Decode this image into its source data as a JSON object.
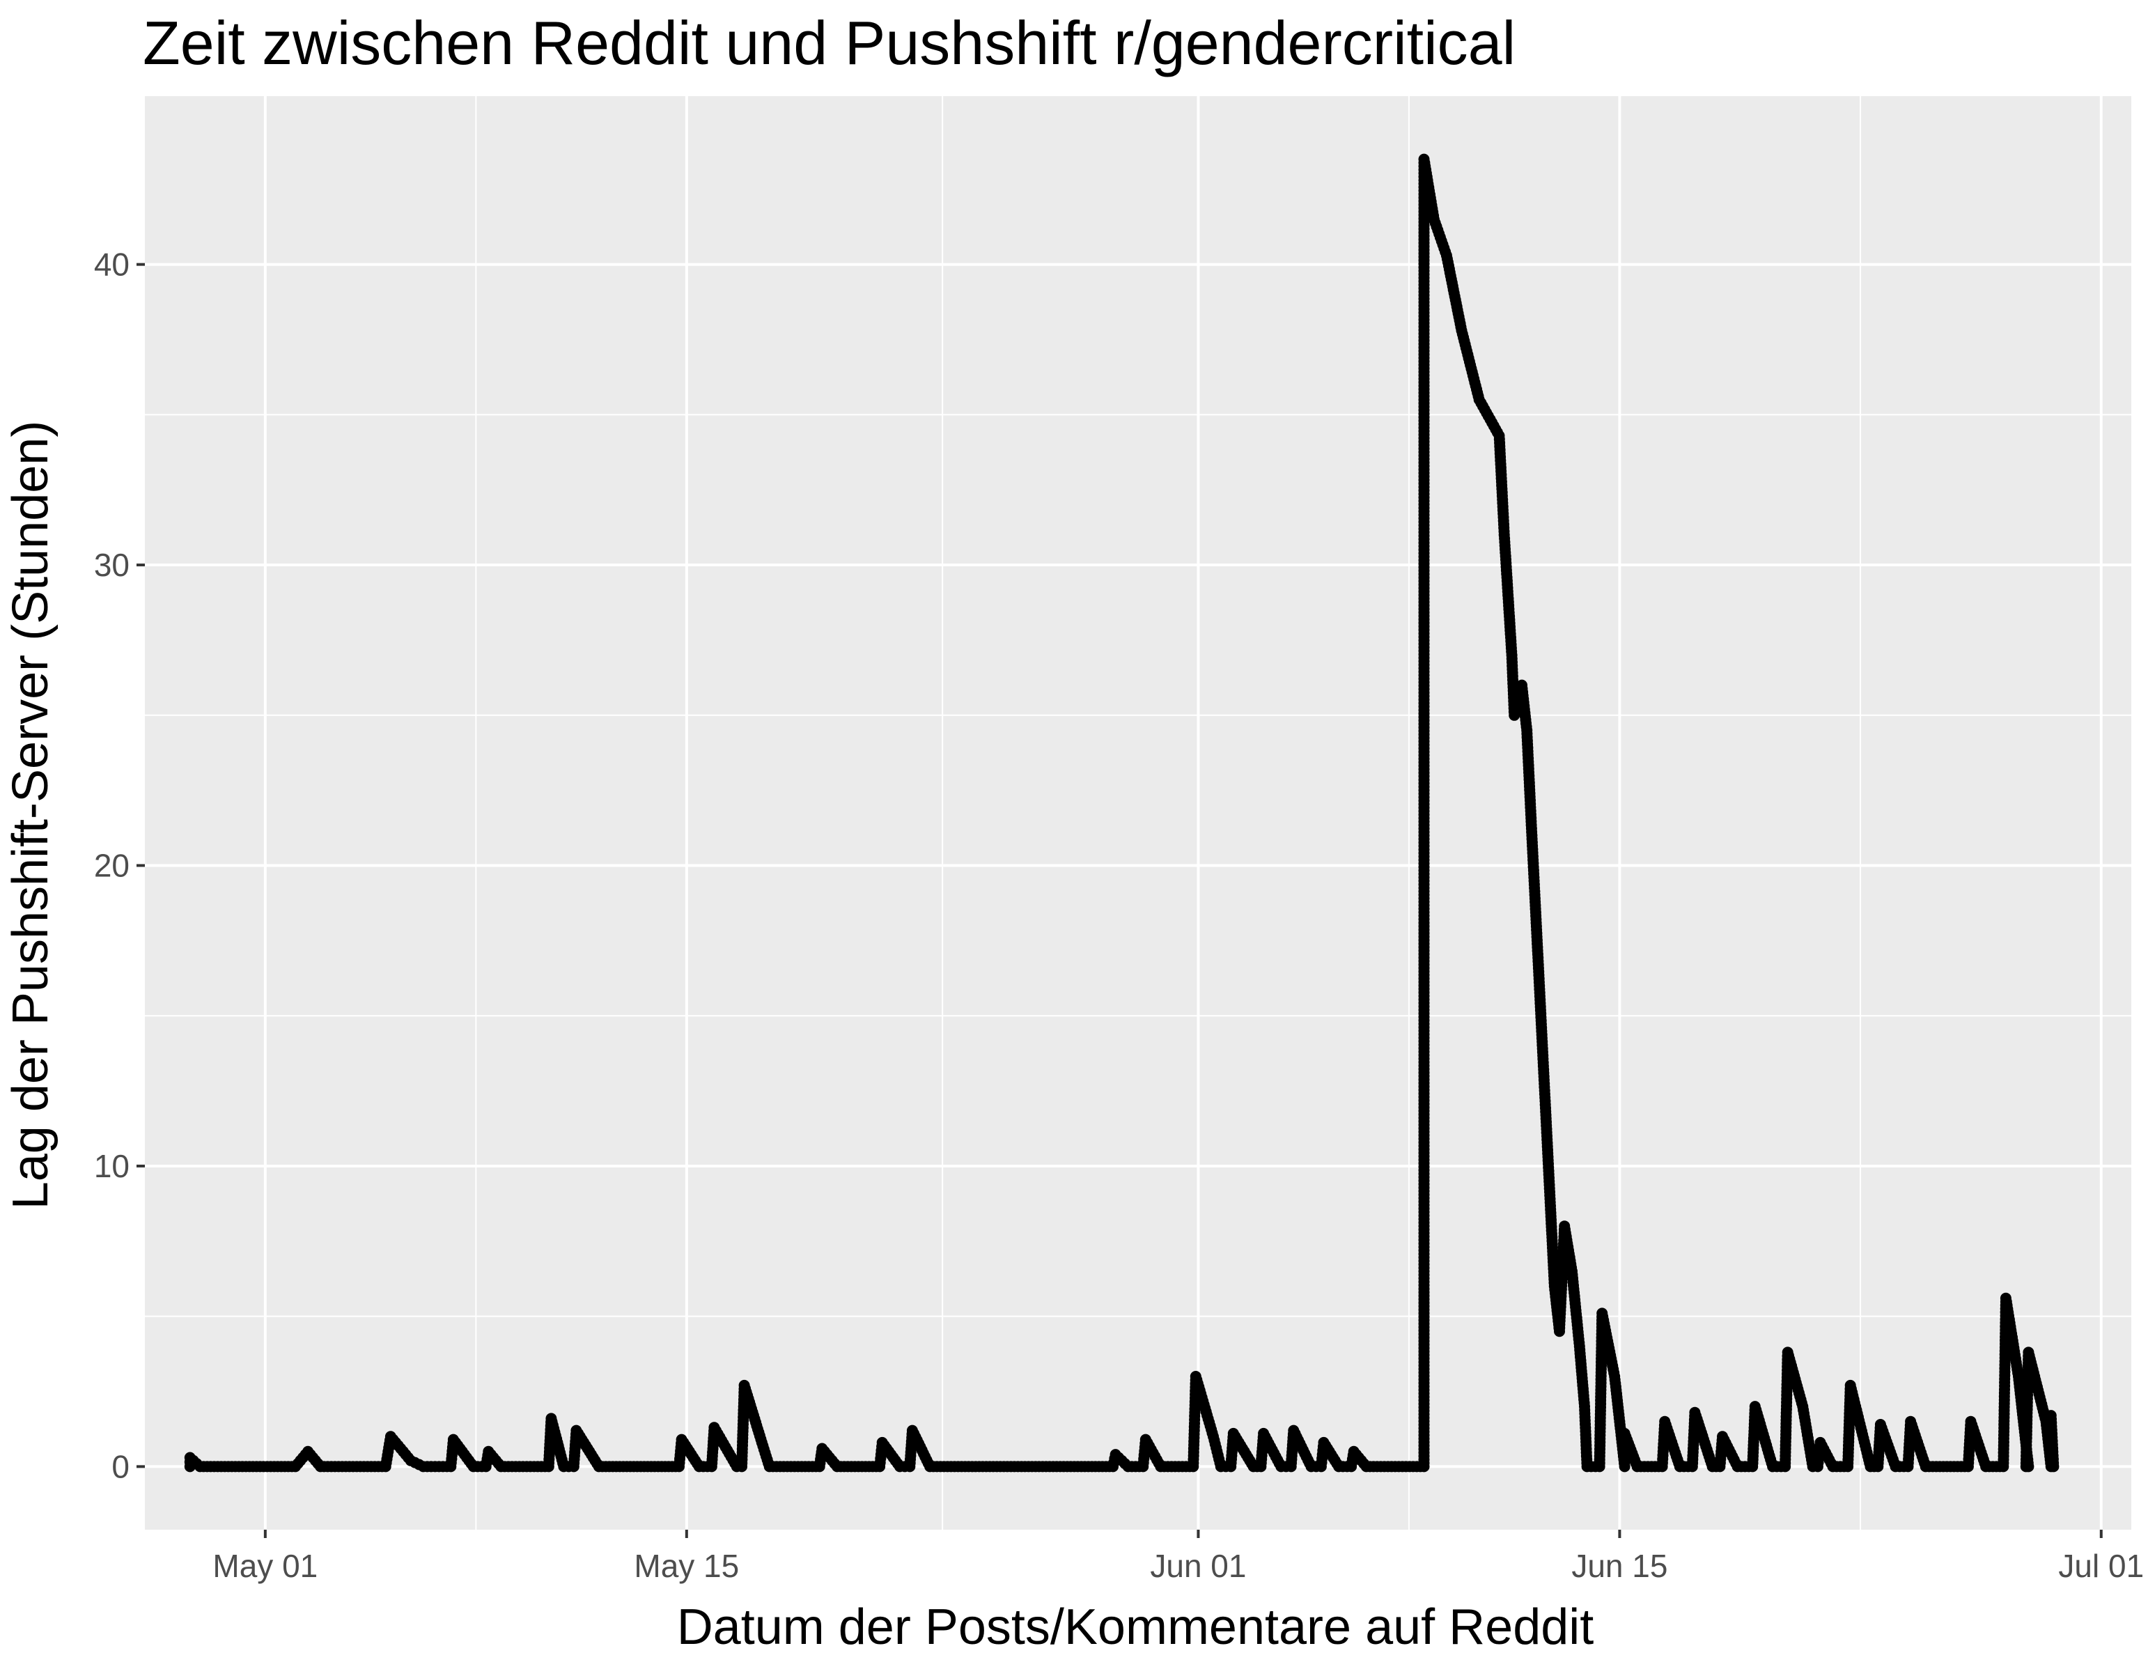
{
  "chart_data": {
    "type": "scatter",
    "title": "Zeit zwischen Reddit und Pushshift r/gendercritical",
    "xlabel": "Datum der Posts/Kommentare auf Reddit",
    "ylabel": "Lag der Pushshift-Server (Stunden)",
    "x_type": "date",
    "xlim": [
      "2020-04-27",
      "2020-07-02"
    ],
    "ylim": [
      -2.1,
      45.6
    ],
    "x_ticks": [
      {
        "value": "2020-05-01",
        "label": "May 01"
      },
      {
        "value": "2020-05-15",
        "label": "May 15"
      },
      {
        "value": "2020-06-01",
        "label": "Jun 01"
      },
      {
        "value": "2020-06-15",
        "label": "Jun 15"
      },
      {
        "value": "2020-07-01",
        "label": "Jul 01"
      }
    ],
    "y_ticks": [
      {
        "value": 0,
        "label": "0"
      },
      {
        "value": 10,
        "label": "10"
      },
      {
        "value": 20,
        "label": "20"
      },
      {
        "value": 30,
        "label": "30"
      },
      {
        "value": 40,
        "label": "40"
      }
    ],
    "grid": true,
    "point_color": "#000000",
    "panel_color": "#ebebeb",
    "grid_color": "#ffffff",
    "series": [
      {
        "points": [
          [
            "2020-04-28T12:00",
            0.0
          ],
          [
            "2020-04-28T12:00",
            0.3
          ],
          [
            "2020-04-28T20:00",
            0.0
          ],
          [
            "2020-05-02T00:00",
            0.0
          ],
          [
            "2020-05-02T10:00",
            0.5
          ],
          [
            "2020-05-02T20:00",
            0.0
          ],
          [
            "2020-05-05T00:00",
            0.0
          ],
          [
            "2020-05-05T04:00",
            1.0
          ],
          [
            "2020-05-05T20:00",
            0.2
          ],
          [
            "2020-05-06T06:00",
            0.0
          ],
          [
            "2020-05-07T04:00",
            0.0
          ],
          [
            "2020-05-07T06:00",
            0.9
          ],
          [
            "2020-05-07T22:00",
            0.0
          ],
          [
            "2020-05-08T08:00",
            0.0
          ],
          [
            "2020-05-08T10:00",
            0.5
          ],
          [
            "2020-05-08T20:00",
            0.0
          ],
          [
            "2020-05-10T10:00",
            0.0
          ],
          [
            "2020-05-10T12:00",
            1.6
          ],
          [
            "2020-05-10T22:00",
            0.0
          ],
          [
            "2020-05-11T06:00",
            0.0
          ],
          [
            "2020-05-11T08:00",
            1.2
          ],
          [
            "2020-05-12T02:00",
            0.0
          ],
          [
            "2020-05-14T18:00",
            0.0
          ],
          [
            "2020-05-14T20:00",
            0.9
          ],
          [
            "2020-05-15T10:00",
            0.0
          ],
          [
            "2020-05-15T20:00",
            0.0
          ],
          [
            "2020-05-15T22:00",
            1.3
          ],
          [
            "2020-05-16T16:00",
            0.0
          ],
          [
            "2020-05-16T20:00",
            0.0
          ],
          [
            "2020-05-16T22:00",
            2.7
          ],
          [
            "2020-05-17T12:00",
            0.8
          ],
          [
            "2020-05-17T18:00",
            0.0
          ],
          [
            "2020-05-19T10:00",
            0.0
          ],
          [
            "2020-05-19T12:00",
            0.6
          ],
          [
            "2020-05-20T00:00",
            0.0
          ],
          [
            "2020-05-21T10:00",
            0.0
          ],
          [
            "2020-05-21T12:00",
            0.8
          ],
          [
            "2020-05-22T02:00",
            0.0
          ],
          [
            "2020-05-22T10:00",
            0.0
          ],
          [
            "2020-05-22T12:00",
            1.2
          ],
          [
            "2020-05-23T02:00",
            0.0
          ],
          [
            "2020-05-29T04:00",
            0.0
          ],
          [
            "2020-05-29T06:00",
            0.4
          ],
          [
            "2020-05-29T16:00",
            0.0
          ],
          [
            "2020-05-30T04:00",
            0.0
          ],
          [
            "2020-05-30T06:00",
            0.9
          ],
          [
            "2020-05-30T18:00",
            0.0
          ],
          [
            "2020-05-31T20:00",
            0.0
          ],
          [
            "2020-05-31T22:00",
            3.0
          ],
          [
            "2020-06-01T12:00",
            1.0
          ],
          [
            "2020-06-01T18:00",
            0.0
          ],
          [
            "2020-06-02T02:00",
            0.0
          ],
          [
            "2020-06-02T04:00",
            1.1
          ],
          [
            "2020-06-02T20:00",
            0.0
          ],
          [
            "2020-06-03T02:00",
            0.0
          ],
          [
            "2020-06-03T04:00",
            1.1
          ],
          [
            "2020-06-03T18:00",
            0.0
          ],
          [
            "2020-06-04T02:00",
            0.0
          ],
          [
            "2020-06-04T04:00",
            1.2
          ],
          [
            "2020-06-04T18:00",
            0.0
          ],
          [
            "2020-06-05T02:00",
            0.0
          ],
          [
            "2020-06-05T04:00",
            0.8
          ],
          [
            "2020-06-05T16:00",
            0.0
          ],
          [
            "2020-06-06T02:00",
            0.0
          ],
          [
            "2020-06-06T04:00",
            0.5
          ],
          [
            "2020-06-06T14:00",
            0.0
          ],
          [
            "2020-06-08T12:00",
            0.0
          ],
          [
            "2020-06-08T12:00",
            43.5
          ],
          [
            "2020-06-08T20:00",
            41.5
          ],
          [
            "2020-06-09T06:00",
            40.3
          ],
          [
            "2020-06-09T18:00",
            37.8
          ],
          [
            "2020-06-10T08:00",
            35.5
          ],
          [
            "2020-06-11T00:00",
            34.3
          ],
          [
            "2020-06-11T04:00",
            31.0
          ],
          [
            "2020-06-11T10:00",
            27.0
          ],
          [
            "2020-06-11T12:00",
            25.0
          ],
          [
            "2020-06-11T18:00",
            26.0
          ],
          [
            "2020-06-11T22:00",
            24.5
          ],
          [
            "2020-06-12T02:00",
            21.0
          ],
          [
            "2020-06-12T08:00",
            16.0
          ],
          [
            "2020-06-12T14:00",
            11.0
          ],
          [
            "2020-06-12T20:00",
            6.0
          ],
          [
            "2020-06-13T00:00",
            4.5
          ],
          [
            "2020-06-13T04:00",
            8.0
          ],
          [
            "2020-06-13T10:00",
            6.5
          ],
          [
            "2020-06-13T16:00",
            4.0
          ],
          [
            "2020-06-13T20:00",
            2.0
          ],
          [
            "2020-06-13T22:00",
            0.0
          ],
          [
            "2020-06-14T08:00",
            0.0
          ],
          [
            "2020-06-14T10:00",
            5.1
          ],
          [
            "2020-06-14T20:00",
            3.0
          ],
          [
            "2020-06-15T04:00",
            0.0
          ],
          [
            "2020-06-15T04:00",
            1.1
          ],
          [
            "2020-06-15T14:00",
            0.0
          ],
          [
            "2020-06-16T10:00",
            0.0
          ],
          [
            "2020-06-16T12:00",
            1.5
          ],
          [
            "2020-06-17T00:00",
            0.0
          ],
          [
            "2020-06-17T10:00",
            0.0
          ],
          [
            "2020-06-17T12:00",
            1.8
          ],
          [
            "2020-06-18T02:00",
            0.0
          ],
          [
            "2020-06-18T08:00",
            0.0
          ],
          [
            "2020-06-18T10:00",
            1.0
          ],
          [
            "2020-06-18T22:00",
            0.0
          ],
          [
            "2020-06-19T10:00",
            0.0
          ],
          [
            "2020-06-19T12:00",
            2.0
          ],
          [
            "2020-06-20T02:00",
            0.0
          ],
          [
            "2020-06-20T12:00",
            0.0
          ],
          [
            "2020-06-20T14:00",
            3.8
          ],
          [
            "2020-06-21T02:00",
            2.0
          ],
          [
            "2020-06-21T10:00",
            0.0
          ],
          [
            "2020-06-21T14:00",
            0.0
          ],
          [
            "2020-06-21T16:00",
            0.8
          ],
          [
            "2020-06-22T02:00",
            0.0
          ],
          [
            "2020-06-22T14:00",
            0.0
          ],
          [
            "2020-06-22T16:00",
            2.7
          ],
          [
            "2020-06-23T08:00",
            0.0
          ],
          [
            "2020-06-23T14:00",
            0.0
          ],
          [
            "2020-06-23T16:00",
            1.4
          ],
          [
            "2020-06-24T04:00",
            0.0
          ],
          [
            "2020-06-24T14:00",
            0.0
          ],
          [
            "2020-06-24T16:00",
            1.5
          ],
          [
            "2020-06-25T04:00",
            0.0
          ],
          [
            "2020-06-26T14:00",
            0.0
          ],
          [
            "2020-06-26T16:00",
            1.5
          ],
          [
            "2020-06-27T04:00",
            0.0
          ],
          [
            "2020-06-27T18:00",
            0.0
          ],
          [
            "2020-06-27T20:00",
            5.6
          ],
          [
            "2020-06-28T06:00",
            3.0
          ],
          [
            "2020-06-28T14:00",
            0.0
          ],
          [
            "2020-06-28T12:00",
            0.0
          ],
          [
            "2020-06-28T14:00",
            3.8
          ],
          [
            "2020-06-29T04:00",
            1.5
          ],
          [
            "2020-06-29T08:00",
            0.0
          ],
          [
            "2020-06-29T08:00",
            1.7
          ],
          [
            "2020-06-29T10:00",
            0.0
          ]
        ]
      }
    ]
  }
}
